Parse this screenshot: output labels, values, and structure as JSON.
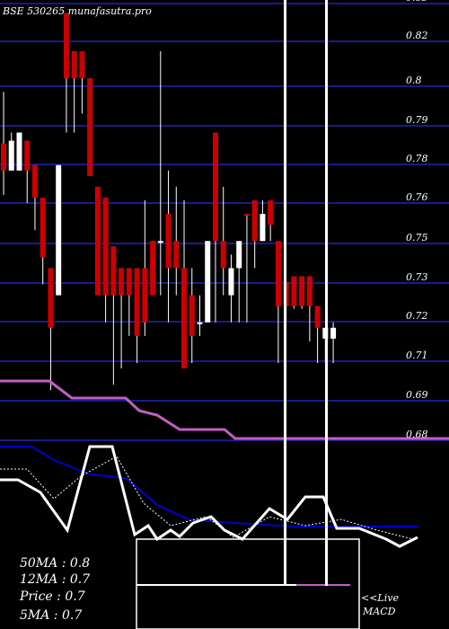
{
  "chart_data": {
    "type": "candlestick",
    "title": "BSE 530265 munafasutra.pro",
    "y_ticks": [
      0.83,
      0.82,
      0.8,
      0.79,
      0.78,
      0.76,
      0.75,
      0.73,
      0.72,
      0.71,
      0.69,
      0.68
    ],
    "ylim": [
      0.6765,
      0.8389
    ],
    "grid": true,
    "candles": [
      {
        "o": 0.786,
        "h": 0.805,
        "l": 0.767,
        "c": 0.776,
        "color": "red"
      },
      {
        "o": 0.787,
        "h": 0.79,
        "l": 0.776,
        "c": 0.776,
        "color": "white"
      },
      {
        "o": 0.79,
        "h": 0.79,
        "l": 0.776,
        "c": 0.776,
        "color": "white"
      },
      {
        "o": 0.787,
        "h": 0.787,
        "l": 0.764,
        "c": 0.776,
        "color": "red"
      },
      {
        "o": 0.778,
        "h": 0.778,
        "l": 0.754,
        "c": 0.766,
        "color": "red"
      },
      {
        "o": 0.766,
        "h": 0.766,
        "l": 0.734,
        "c": 0.744,
        "color": "red"
      },
      {
        "o": 0.74,
        "h": 0.74,
        "l": 0.695,
        "c": 0.718,
        "color": "red"
      },
      {
        "o": 0.778,
        "h": 0.778,
        "l": 0.73,
        "c": 0.73,
        "color": "white"
      },
      {
        "o": 0.834,
        "h": 0.834,
        "l": 0.79,
        "c": 0.81,
        "color": "red"
      },
      {
        "o": 0.82,
        "h": 0.82,
        "l": 0.79,
        "c": 0.81,
        "color": "red"
      },
      {
        "o": 0.82,
        "h": 0.82,
        "l": 0.797,
        "c": 0.81,
        "color": "red"
      },
      {
        "o": 0.81,
        "h": 0.81,
        "l": 0.774,
        "c": 0.774,
        "color": "red"
      },
      {
        "o": 0.77,
        "h": 0.77,
        "l": 0.73,
        "c": 0.73,
        "color": "red"
      },
      {
        "o": 0.766,
        "h": 0.766,
        "l": 0.72,
        "c": 0.73,
        "color": "red"
      },
      {
        "o": 0.748,
        "h": 0.748,
        "l": 0.697,
        "c": 0.73,
        "color": "red"
      },
      {
        "o": 0.74,
        "h": 0.74,
        "l": 0.703,
        "c": 0.73,
        "color": "red"
      },
      {
        "o": 0.74,
        "h": 0.74,
        "l": 0.715,
        "c": 0.73,
        "color": "red"
      },
      {
        "o": 0.74,
        "h": 0.74,
        "l": 0.705,
        "c": 0.715,
        "color": "red"
      },
      {
        "o": 0.74,
        "h": 0.765,
        "l": 0.715,
        "c": 0.72,
        "color": "red"
      },
      {
        "o": 0.75,
        "h": 0.75,
        "l": 0.73,
        "c": 0.73,
        "color": "red"
      },
      {
        "o": 0.75,
        "h": 0.82,
        "l": 0.73,
        "c": 0.75,
        "color": "white"
      },
      {
        "o": 0.76,
        "h": 0.776,
        "l": 0.72,
        "c": 0.74,
        "color": "red"
      },
      {
        "o": 0.75,
        "h": 0.77,
        "l": 0.73,
        "c": 0.74,
        "color": "red"
      },
      {
        "o": 0.74,
        "h": 0.765,
        "l": 0.703,
        "c": 0.703,
        "color": "red"
      },
      {
        "o": 0.73,
        "h": 0.74,
        "l": 0.705,
        "c": 0.715,
        "color": "red"
      },
      {
        "o": 0.72,
        "h": 0.73,
        "l": 0.715,
        "c": 0.72,
        "color": "white"
      },
      {
        "o": 0.72,
        "h": 0.75,
        "l": 0.72,
        "c": 0.75,
        "color": "white"
      },
      {
        "o": 0.79,
        "h": 0.79,
        "l": 0.72,
        "c": 0.75,
        "color": "red"
      },
      {
        "o": 0.75,
        "h": 0.77,
        "l": 0.73,
        "c": 0.74,
        "color": "red"
      },
      {
        "o": 0.73,
        "h": 0.745,
        "l": 0.72,
        "c": 0.74,
        "color": "white"
      },
      {
        "o": 0.74,
        "h": 0.75,
        "l": 0.72,
        "c": 0.75,
        "color": "white"
      },
      {
        "o": 0.76,
        "h": 0.76,
        "l": 0.72,
        "c": 0.76,
        "color": "red"
      },
      {
        "o": 0.765,
        "h": 0.765,
        "l": 0.74,
        "c": 0.75,
        "color": "red"
      },
      {
        "o": 0.76,
        "h": 0.765,
        "l": 0.75,
        "c": 0.75,
        "color": "white"
      },
      {
        "o": 0.765,
        "h": 0.765,
        "l": 0.75,
        "c": 0.756,
        "color": "red"
      },
      {
        "o": 0.75,
        "h": 0.75,
        "l": 0.705,
        "c": 0.726,
        "color": "red"
      },
      {
        "o": 0.735,
        "h": 0.735,
        "l": 0.72,
        "c": 0.726,
        "color": "red"
      },
      {
        "o": 0.737,
        "h": 0.737,
        "l": 0.725,
        "c": 0.726,
        "color": "red"
      },
      {
        "o": 0.737,
        "h": 0.737,
        "l": 0.725,
        "c": 0.726,
        "color": "red"
      },
      {
        "o": 0.737,
        "h": 0.737,
        "l": 0.713,
        "c": 0.726,
        "color": "red"
      },
      {
        "o": 0.726,
        "h": 0.726,
        "l": 0.705,
        "c": 0.718,
        "color": "red"
      },
      {
        "o": 0.718,
        "h": 0.718,
        "l": 0.705,
        "c": 0.714,
        "color": "white"
      },
      {
        "o": 0.718,
        "h": 0.72,
        "l": 0.705,
        "c": 0.714,
        "color": "white"
      }
    ],
    "ma_lines": [
      {
        "color": "#c060c0",
        "values": [
          0.7045,
          0.7045,
          0.7045,
          0.7045,
          0.7045,
          0.7045,
          0.7045,
          0.7045,
          0.7045,
          0.7045,
          0.7045,
          0.7045,
          0.7045,
          0.7045,
          0.7045,
          0.7045,
          0.7045,
          0.7045,
          0.7045,
          0.7045
        ]
      },
      {
        "color": "#c060c0",
        "values": [
          0.6975,
          0.6975,
          0.6975,
          0.6975,
          0.6975,
          0.6975,
          0.6975,
          0.6975,
          0.6975,
          0.6975,
          0.6975,
          0.6975,
          0.6975,
          0.6975,
          0.6975,
          0.6975,
          0.6975,
          0.6975,
          0.6975,
          0.6975,
          0.6975
        ]
      }
    ],
    "legend_lines": [
      "50MA : 0.8",
      "12MA : 0.7",
      "Price   : 0.7",
      "5MA : 0.7"
    ],
    "macd_label": "<<Live\nMACD",
    "y_tick_0": "0.83",
    "y_tick_1": "0.82",
    "y_tick_2": "0.8",
    "y_tick_3": "0.79",
    "y_tick_4": "0.78",
    "y_tick_5": "0.76",
    "y_tick_6": "0.75",
    "y_tick_7": "0.73",
    "y_tick_8": "0.72",
    "y_tick_9": "0.71",
    "y_tick_10": "0.69",
    "y_tick_11": "0.68",
    "legend_0": "50MA : 0.8",
    "legend_1": "12MA : 0.7",
    "legend_2": "Price   : 0.7",
    "legend_3": "5MA : 0.7",
    "live_0": "<<Live",
    "live_1": "MACD"
  },
  "colors": {
    "background": "#000000",
    "grid": "#1a1a8a",
    "bear": "#cc0000",
    "bull": "#ffffff",
    "ma": "#c060c0",
    "macd_signal": "#0000cc"
  }
}
